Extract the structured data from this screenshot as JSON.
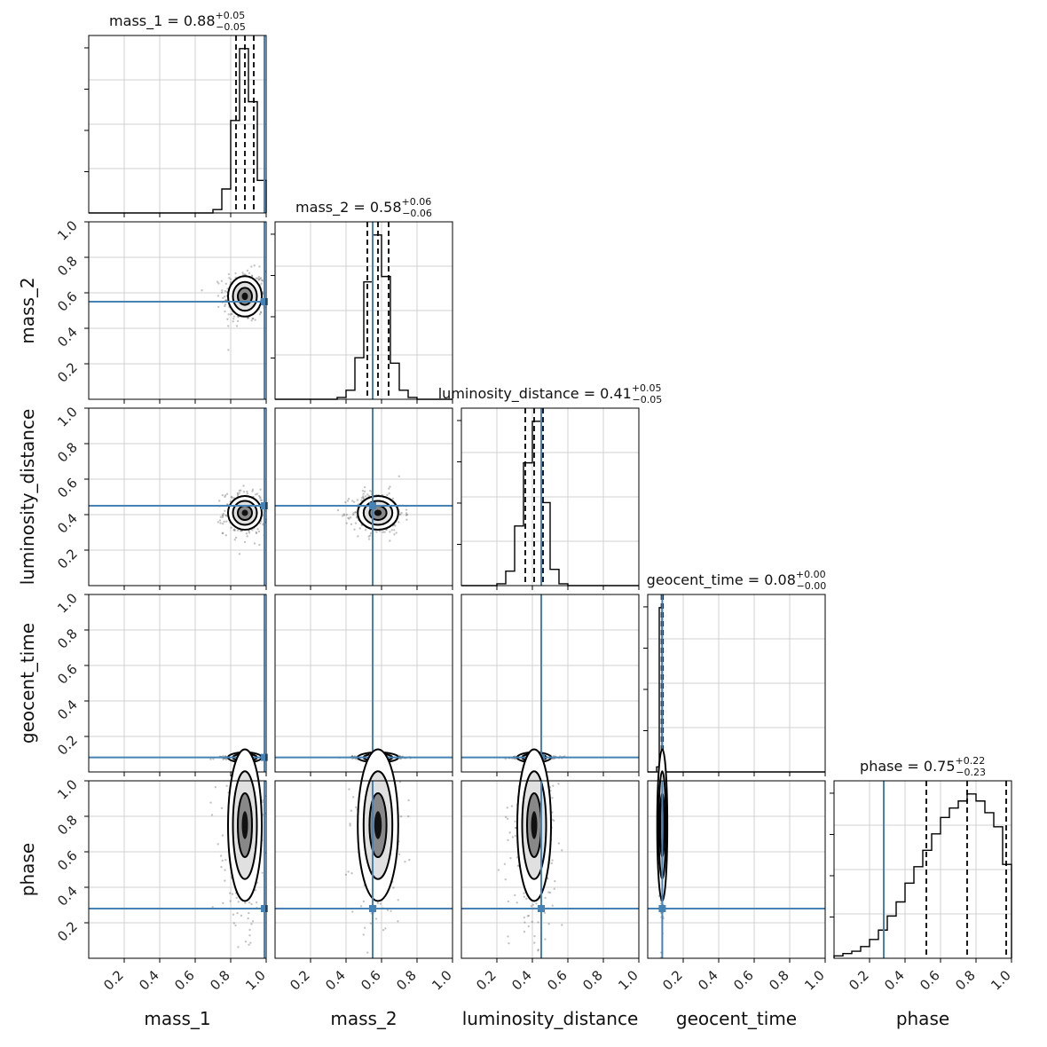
{
  "chart_data": {
    "type": "corner",
    "parameters": [
      {
        "name": "mass_1",
        "title_name": "mass_1",
        "median": "0.88",
        "plus": "0.05",
        "minus": "0.05",
        "quantiles": [
          0.83,
          0.88,
          0.93
        ],
        "truth": 0.99,
        "range": [
          0,
          1.0
        ],
        "hist_edges": [
          0.7,
          0.75,
          0.8,
          0.85,
          0.9,
          0.95,
          1.0
        ],
        "hist_counts": [
          2,
          14,
          54,
          96,
          65,
          19
        ]
      },
      {
        "name": "mass_2",
        "title_name": "mass_2",
        "median": "0.58",
        "plus": "0.06",
        "minus": "0.06",
        "quantiles": [
          0.52,
          0.58,
          0.64
        ],
        "truth": 0.55,
        "range": [
          0,
          1.0
        ],
        "hist_edges": [
          0.35,
          0.4,
          0.45,
          0.5,
          0.55,
          0.6,
          0.65,
          0.7,
          0.75,
          0.8
        ],
        "hist_counts": [
          1,
          5,
          23,
          65,
          91,
          68,
          20,
          5,
          1
        ]
      },
      {
        "name": "luminosity_distance",
        "title_name": "luminosity_distance",
        "median": "0.41",
        "plus": "0.05",
        "minus": "0.05",
        "quantiles": [
          0.36,
          0.41,
          0.46
        ],
        "truth": 0.45,
        "range": [
          0,
          1.0
        ],
        "hist_edges": [
          0.2,
          0.25,
          0.3,
          0.35,
          0.4,
          0.45,
          0.5,
          0.55,
          0.6
        ],
        "hist_counts": [
          1,
          8,
          33,
          68,
          91,
          46,
          9,
          1
        ]
      },
      {
        "name": "geocent_time",
        "title_name": "geocent_time",
        "median": "0.08",
        "plus": "0.00",
        "minus": "0.00",
        "quantiles": [
          0.078,
          0.082,
          0.086
        ],
        "truth": 0.082,
        "range": [
          0,
          1.0
        ],
        "hist_edges": [
          0.05,
          0.065,
          0.08,
          0.095
        ],
        "hist_counts": [
          3,
          98,
          4
        ]
      },
      {
        "name": "phase",
        "title_name": "phase",
        "median": "0.75",
        "plus": "0.22",
        "minus": "0.23",
        "quantiles": [
          0.52,
          0.75,
          0.97
        ],
        "truth": 0.28,
        "range": [
          0,
          1.0
        ],
        "hist_edges": [
          0.0,
          0.05,
          0.1,
          0.15,
          0.2,
          0.25,
          0.3,
          0.35,
          0.4,
          0.45,
          0.5,
          0.55,
          0.6,
          0.65,
          0.7,
          0.75,
          0.8,
          0.85,
          0.9,
          0.95,
          1.0
        ],
        "hist_counts": [
          1,
          2,
          3,
          5,
          8,
          12,
          18,
          24,
          32,
          39,
          46,
          53,
          60,
          64,
          67,
          70,
          67,
          62,
          56,
          40
        ]
      }
    ],
    "tick_labels": [
      "0.2",
      "0.4",
      "0.6",
      "0.8",
      "1.0"
    ],
    "ticks": [
      0.2,
      0.4,
      0.6,
      0.8,
      1.0
    ],
    "truth_color": "#4682b4",
    "line_color": "#000000",
    "grid": true
  }
}
